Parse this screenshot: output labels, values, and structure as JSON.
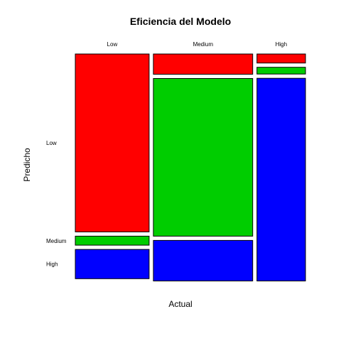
{
  "chart_data": {
    "type": "mosaic",
    "title": "Eficiencia del Modelo",
    "xlabel": "Actual",
    "ylabel": "Predicho",
    "categories": [
      "Low",
      "Medium",
      "High"
    ],
    "row_categories": [
      "Low",
      "Medium",
      "High"
    ],
    "column_proportions": [
      0.333,
      0.448,
      0.219
    ],
    "series": [
      {
        "name": "Low",
        "values": [
          0.79,
          0.09,
          0.04
        ]
      },
      {
        "name": "Medium",
        "values": [
          0.04,
          0.7,
          0.03
        ]
      },
      {
        "name": "High",
        "values": [
          0.13,
          0.18,
          0.9
        ]
      }
    ],
    "grid": false,
    "legend": "none"
  },
  "colors": {
    "Low": "#ff0000",
    "Medium": "#00cd00",
    "High": "#0000ff",
    "outline": "#000000"
  }
}
